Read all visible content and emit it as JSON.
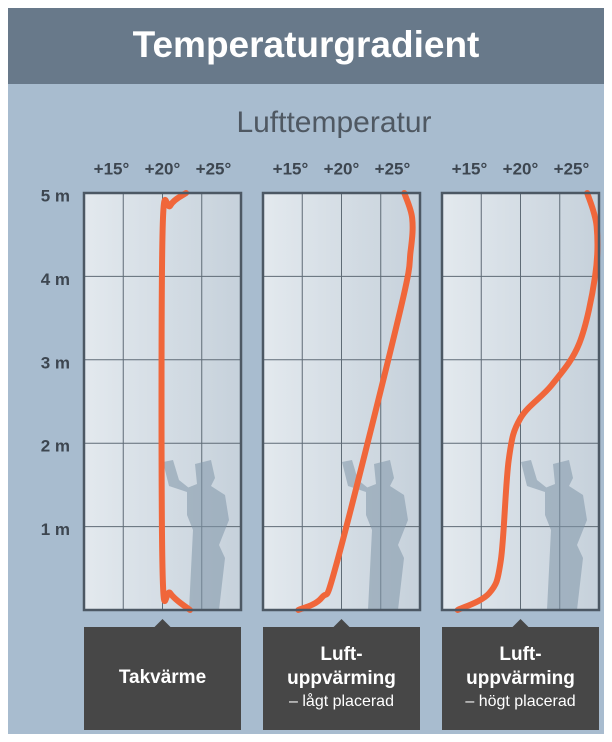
{
  "title": "Temperaturgradient",
  "xlabel": "Lufttemperatur",
  "chart_data": [
    {
      "type": "line",
      "caption": [
        "Takvärme"
      ],
      "series": [
        {
          "color": "#f0663a",
          "x": [
            23.5,
            21,
            20,
            20,
            21,
            23
          ],
          "values": [
            0,
            0.2,
            0.5,
            4.5,
            4.85,
            5
          ]
        }
      ],
      "xlim": [
        10,
        30
      ],
      "xticks": [
        {
          "value": 15,
          "label": "+15°"
        },
        {
          "value": 20,
          "label": "+20°"
        },
        {
          "value": 25,
          "label": "+25°"
        }
      ],
      "ylim": [
        0,
        5
      ],
      "yticks": [
        {
          "value": 1,
          "label": "1 m"
        },
        {
          "value": 2,
          "label": "2 m"
        },
        {
          "value": 3,
          "label": "3 m"
        },
        {
          "value": 4,
          "label": "4 m"
        },
        {
          "value": 5,
          "label": "5 m"
        }
      ],
      "grid": true
    },
    {
      "type": "line",
      "caption": [
        "Luft-",
        "uppvärming"
      ],
      "subcaption": "– lågt placerad",
      "series": [
        {
          "color": "#f0663a",
          "x": [
            14.5,
            17.5,
            19.5,
            27.5,
            28.8,
            29,
            28
          ],
          "values": [
            0,
            0.15,
            0.6,
            3.6,
            4.3,
            4.7,
            5
          ]
        }
      ],
      "xlim": [
        10,
        30
      ],
      "xticks": [
        {
          "value": 15,
          "label": "+15°"
        },
        {
          "value": 20,
          "label": "+20°"
        },
        {
          "value": 25,
          "label": "+25°"
        }
      ],
      "ylim": [
        0,
        5
      ],
      "yticks": [
        {
          "value": 1,
          "label": "1 m"
        },
        {
          "value": 2,
          "label": "2 m"
        },
        {
          "value": 3,
          "label": "3 m"
        },
        {
          "value": 4,
          "label": "4 m"
        },
        {
          "value": 5,
          "label": "5 m"
        }
      ],
      "grid": true
    },
    {
      "type": "line",
      "caption": [
        "Luft-",
        "uppvärming"
      ],
      "subcaption": "– högt placerad",
      "series": [
        {
          "color": "#f0663a",
          "x": [
            12,
            16,
            17.5,
            18.5,
            20,
            24,
            27.5,
            29.5,
            29.7,
            28.5
          ],
          "values": [
            0,
            0.2,
            0.6,
            1.8,
            2.3,
            2.7,
            3.2,
            4,
            4.6,
            5
          ]
        }
      ],
      "xlim": [
        10,
        30
      ],
      "xticks": [
        {
          "value": 15,
          "label": "+15°"
        },
        {
          "value": 20,
          "label": "+20°"
        },
        {
          "value": 25,
          "label": "+25°"
        }
      ],
      "ylim": [
        0,
        5
      ],
      "yticks": [
        {
          "value": 1,
          "label": "1 m"
        },
        {
          "value": 2,
          "label": "2 m"
        },
        {
          "value": 3,
          "label": "3 m"
        },
        {
          "value": 4,
          "label": "4 m"
        },
        {
          "value": 5,
          "label": "5 m"
        }
      ],
      "grid": true
    }
  ]
}
